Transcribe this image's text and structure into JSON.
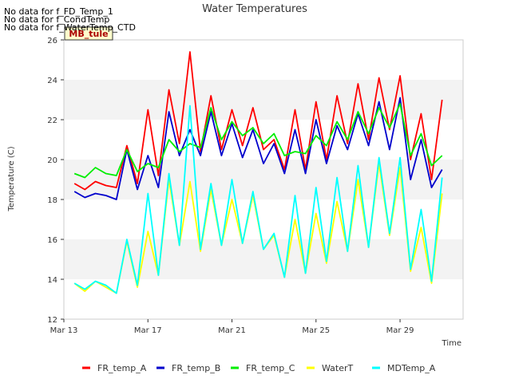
{
  "notes": [
    "No data for f_FD_Temp_1",
    "No data for f_CondTemp",
    "No data for f_WaterTemp_CTD"
  ],
  "site_badge": "MB_tule",
  "chart_data": {
    "type": "line",
    "title": "Water Temperatures",
    "xlabel": "Time",
    "ylabel": "Temperature (C)",
    "xlim": [
      "2000-03-13",
      "2000-04-01"
    ],
    "ylim": [
      12,
      26
    ],
    "x_ticks": [
      {
        "date": "2000-03-13",
        "label": "Mar 13"
      },
      {
        "date": "2000-03-17",
        "label": "Mar 17"
      },
      {
        "date": "2000-03-21",
        "label": "Mar 21"
      },
      {
        "date": "2000-03-25",
        "label": "Mar 25"
      },
      {
        "date": "2000-03-29",
        "label": "Mar 29"
      }
    ],
    "y_ticks": [
      12,
      14,
      16,
      18,
      20,
      22,
      24,
      26
    ],
    "grid": "horizontal alternating bands",
    "legend_position": "bottom",
    "x": [
      "2000-03-13 12:00",
      "2000-03-14 00:00",
      "2000-03-14 12:00",
      "2000-03-15 00:00",
      "2000-03-15 12:00",
      "2000-03-16 00:00",
      "2000-03-16 12:00",
      "2000-03-17 00:00",
      "2000-03-17 12:00",
      "2000-03-18 00:00",
      "2000-03-18 12:00",
      "2000-03-19 00:00",
      "2000-03-19 12:00",
      "2000-03-20 00:00",
      "2000-03-20 12:00",
      "2000-03-21 00:00",
      "2000-03-21 12:00",
      "2000-03-22 00:00",
      "2000-03-22 12:00",
      "2000-03-23 00:00",
      "2000-03-23 12:00",
      "2000-03-24 00:00",
      "2000-03-24 12:00",
      "2000-03-25 00:00",
      "2000-03-25 12:00",
      "2000-03-26 00:00",
      "2000-03-26 12:00",
      "2000-03-27 00:00",
      "2000-03-27 12:00",
      "2000-03-28 00:00",
      "2000-03-28 12:00",
      "2000-03-29 00:00",
      "2000-03-29 12:00",
      "2000-03-30 00:00",
      "2000-03-30 12:00",
      "2000-03-31 00:00"
    ],
    "series": [
      {
        "name": "FR_temp_A",
        "color": "#ff0000",
        "values": [
          18.8,
          18.5,
          18.9,
          18.7,
          18.6,
          20.7,
          18.8,
          22.5,
          19.2,
          23.5,
          20.8,
          25.4,
          20.4,
          23.2,
          20.5,
          22.5,
          20.7,
          22.6,
          20.5,
          21.0,
          19.5,
          22.5,
          19.5,
          22.9,
          20.0,
          23.2,
          20.8,
          23.8,
          21.0,
          24.1,
          21.5,
          24.2,
          20.0,
          22.3,
          19.0,
          23.0
        ]
      },
      {
        "name": "FR_temp_B",
        "color": "#0000cc",
        "values": [
          18.4,
          18.1,
          18.3,
          18.2,
          18.0,
          20.5,
          18.5,
          20.2,
          18.6,
          22.4,
          20.2,
          21.5,
          20.2,
          22.4,
          20.2,
          21.8,
          20.1,
          21.5,
          19.8,
          20.8,
          19.3,
          21.5,
          19.3,
          22.0,
          19.8,
          21.7,
          20.5,
          22.3,
          20.7,
          22.9,
          20.5,
          23.1,
          19.0,
          21.0,
          18.6,
          19.5
        ]
      },
      {
        "name": "FR_temp_C",
        "color": "#00ee00",
        "values": [
          19.3,
          19.1,
          19.6,
          19.3,
          19.2,
          20.5,
          19.4,
          19.8,
          19.6,
          21.0,
          20.4,
          20.8,
          20.6,
          22.6,
          21.0,
          21.9,
          21.2,
          21.6,
          20.8,
          21.3,
          20.2,
          20.4,
          20.3,
          21.2,
          20.7,
          21.9,
          21.0,
          22.4,
          21.3,
          22.6,
          21.6,
          22.8,
          20.2,
          21.3,
          19.7,
          20.2
        ]
      },
      {
        "name": "WaterT",
        "color": "#ffff00",
        "values": [
          13.8,
          13.4,
          13.9,
          13.6,
          13.3,
          15.9,
          13.6,
          16.4,
          14.2,
          19.0,
          15.7,
          18.9,
          15.4,
          18.5,
          15.7,
          18.0,
          15.8,
          18.2,
          15.5,
          16.2,
          14.1,
          17.0,
          14.3,
          17.3,
          14.8,
          17.9,
          15.4,
          19.0,
          15.6,
          19.8,
          16.2,
          19.6,
          14.4,
          16.6,
          13.8,
          18.3
        ]
      },
      {
        "name": "MDTemp_A",
        "color": "#00ffff",
        "values": [
          13.8,
          13.5,
          13.9,
          13.7,
          13.3,
          16.0,
          13.7,
          18.3,
          14.2,
          19.3,
          15.7,
          22.7,
          15.5,
          18.8,
          15.7,
          19.0,
          15.8,
          18.4,
          15.5,
          16.3,
          14.1,
          18.2,
          14.3,
          18.6,
          14.9,
          19.1,
          15.4,
          19.7,
          15.6,
          20.1,
          16.3,
          20.1,
          14.5,
          17.5,
          13.9,
          19.1
        ]
      }
    ]
  }
}
